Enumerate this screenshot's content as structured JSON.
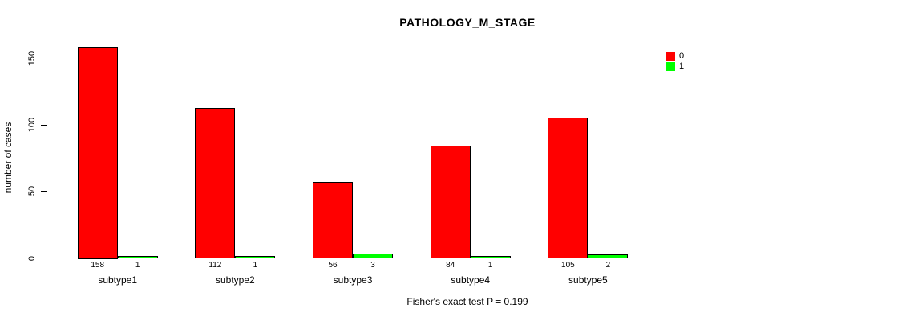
{
  "chart_data": {
    "type": "bar",
    "title": "PATHOLOGY_M_STAGE",
    "ylabel": "number of cases",
    "xlabel": "",
    "footnote": "Fisher's exact test P = 0.199",
    "categories": [
      "subtype1",
      "subtype2",
      "subtype3",
      "subtype4",
      "subtype5"
    ],
    "series": [
      {
        "name": "0",
        "color": "#ff0000",
        "values": [
          158,
          112,
          56,
          84,
          105
        ]
      },
      {
        "name": "1",
        "color": "#00ff00",
        "values": [
          1,
          1,
          3,
          1,
          2
        ]
      }
    ],
    "bar_value_labels": [
      [
        "158",
        "112",
        "56",
        "84",
        "105"
      ],
      [
        "1",
        "1",
        "3",
        "1",
        "2"
      ]
    ],
    "yticks": [
      "0",
      "50",
      "100",
      "150"
    ],
    "ylim": [
      0,
      158
    ],
    "grid": false,
    "legend_position": "topright",
    "colors": {
      "background": "#ffffff",
      "axis": "#000000",
      "bar_border": "#000000",
      "text": "#000000"
    }
  }
}
